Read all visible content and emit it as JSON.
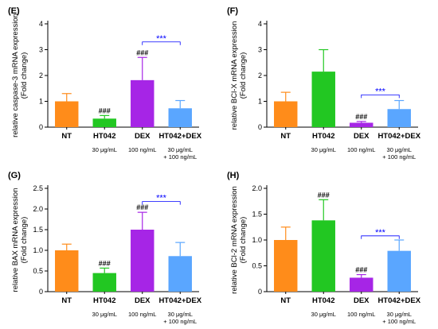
{
  "chart_data": [
    {
      "letter": "(E)",
      "type": "bar",
      "ylabel": [
        "relative caspase-3 mRNA expression",
        "(Fold change)"
      ],
      "ylim": [
        0,
        4
      ],
      "yticks": [
        "0",
        "1",
        "2",
        "3",
        "4"
      ],
      "categories": [
        "NT",
        "HT042",
        "DEX",
        "HT042+DEX"
      ],
      "doses": [
        [
          ""
        ],
        [
          "30 μg/mL"
        ],
        [
          "100 ng/mL"
        ],
        [
          "30 μg/mL",
          "+ 100 ng/mL"
        ]
      ],
      "values": [
        1.0,
        0.33,
        1.82,
        0.73
      ],
      "errors": [
        0.3,
        0.12,
        0.88,
        0.3
      ],
      "marks": [
        "",
        "###",
        "###",
        ""
      ],
      "bracket": {
        "from": 2,
        "to": 3,
        "label": "***",
        "y": 3.3
      },
      "colors": [
        "#ff8c1a",
        "#22c722",
        "#a625e6",
        "#5aa6ff"
      ]
    },
    {
      "letter": "(F)",
      "type": "bar",
      "ylabel": [
        "relative BCl-X mRNA expression",
        "(Fold change)"
      ],
      "ylim": [
        0,
        4
      ],
      "yticks": [
        "0",
        "1",
        "2",
        "3",
        "4"
      ],
      "categories": [
        "NT",
        "HT042",
        "DEX",
        "HT042+DEX"
      ],
      "doses": [
        [
          ""
        ],
        [
          "30 μg/mL"
        ],
        [
          "100 ng/mL"
        ],
        [
          "30 μg/mL",
          "+ 100 ng/mL"
        ]
      ],
      "values": [
        1.0,
        2.15,
        0.17,
        0.7
      ],
      "errors": [
        0.35,
        0.85,
        0.05,
        0.33
      ],
      "marks": [
        "",
        "",
        "###",
        ""
      ],
      "bracket": {
        "from": 2,
        "to": 3,
        "label": "***",
        "y": 1.25
      },
      "colors": [
        "#ff8c1a",
        "#22c722",
        "#a625e6",
        "#5aa6ff"
      ]
    },
    {
      "letter": "(G)",
      "type": "bar",
      "ylabel": [
        "relative BAX mRNA expression",
        "(Fold change)"
      ],
      "ylim": [
        0,
        2.5
      ],
      "yticks": [
        "0",
        "0.5",
        "1.0",
        "1.5",
        "2.0",
        "2.5"
      ],
      "categories": [
        "NT",
        "HT042",
        "DEX",
        "HT042+DEX"
      ],
      "doses": [
        [
          ""
        ],
        [
          "30 μg/mL"
        ],
        [
          "100 ng/mL"
        ],
        [
          "30 μg/mL",
          "+ 100 ng/mL"
        ]
      ],
      "values": [
        1.0,
        0.45,
        1.5,
        0.86
      ],
      "errors": [
        0.15,
        0.12,
        0.42,
        0.33
      ],
      "marks": [
        "",
        "###",
        "###",
        ""
      ],
      "bracket": {
        "from": 2,
        "to": 3,
        "label": "***",
        "y": 2.18
      },
      "colors": [
        "#ff8c1a",
        "#22c722",
        "#a625e6",
        "#5aa6ff"
      ]
    },
    {
      "letter": "(H)",
      "type": "bar",
      "ylabel": [
        "relative BCl-2 mRNA expression",
        "(Fold change)"
      ],
      "ylim": [
        0,
        2.0
      ],
      "yticks": [
        "0",
        "0.5",
        "1.0",
        "1.5",
        "2.0"
      ],
      "categories": [
        "NT",
        "HT042",
        "DEX",
        "HT042+DEX"
      ],
      "doses": [
        [
          ""
        ],
        [
          "30 μg/mL"
        ],
        [
          "100 ng/mL"
        ],
        [
          "30 μg/mL",
          "+ 100 ng/mL"
        ]
      ],
      "values": [
        1.0,
        1.38,
        0.27,
        0.79
      ],
      "errors": [
        0.25,
        0.4,
        0.06,
        0.21
      ],
      "marks": [
        "",
        "###",
        "###",
        ""
      ],
      "bracket": {
        "from": 2,
        "to": 3,
        "label": "***",
        "y": 1.08
      },
      "colors": [
        "#ff8c1a",
        "#22c722",
        "#a625e6",
        "#5aa6ff"
      ]
    }
  ]
}
